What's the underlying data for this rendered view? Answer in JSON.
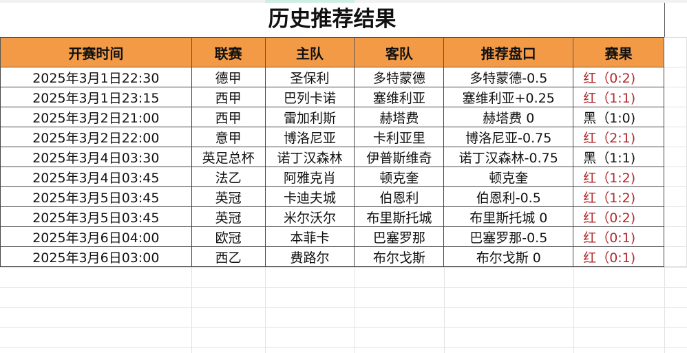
{
  "title": "历史推荐结果",
  "headers": [
    "开赛时间",
    "联赛",
    "主队",
    "客队",
    "推荐盘口",
    "赛果"
  ],
  "rows": [
    {
      "time": "2025年3月1日22:30",
      "league": "德甲",
      "home": "圣保利",
      "away": "多特蒙德",
      "pick": "多特蒙德-0.5",
      "result": "红（0:2)",
      "outcome": "red"
    },
    {
      "time": "2025年3月1日23:15",
      "league": "西甲",
      "home": "巴列卡诺",
      "away": "塞维利亚",
      "pick": "塞维利亚+0.25",
      "result": "红（1:1)",
      "outcome": "red"
    },
    {
      "time": "2025年3月2日21:00",
      "league": "西甲",
      "home": "雷加利斯",
      "away": "赫塔费",
      "pick": "赫塔费 0",
      "result": "黑（1:0)",
      "outcome": "black"
    },
    {
      "time": "2025年3月2日22:00",
      "league": "意甲",
      "home": "博洛尼亚",
      "away": "卡利亚里",
      "pick": "博洛尼亚-0.75",
      "result": "红（2:1)",
      "outcome": "red"
    },
    {
      "time": "2025年3月4日03:30",
      "league": "英足总杯",
      "home": "诺丁汉森林",
      "away": "伊普斯维奇",
      "pick": "诺丁汉森林-0.75",
      "result": "黑（1:1)",
      "outcome": "black"
    },
    {
      "time": "2025年3月4日03:45",
      "league": "法乙",
      "home": "阿雅克肖",
      "away": "顿克奎",
      "pick": "顿克奎",
      "result": "红（1:2)",
      "outcome": "red"
    },
    {
      "time": "2025年3月5日03:45",
      "league": "英冠",
      "home": "卡迪夫城",
      "away": "伯恩利",
      "pick": "伯恩利-0.5",
      "result": "红（1:2)",
      "outcome": "red"
    },
    {
      "time": "2025年3月5日03:45",
      "league": "英冠",
      "home": "米尔沃尔",
      "away": "布里斯托城",
      "pick": "布里斯托城 0",
      "result": "红（0:2)",
      "outcome": "red"
    },
    {
      "time": "2025年3月6日04:00",
      "league": "欧冠",
      "home": "本菲卡",
      "away": "巴塞罗那",
      "pick": "巴塞罗那-0.5",
      "result": "红（0:1)",
      "outcome": "red"
    },
    {
      "time": "2025年3月6日03:00",
      "league": "西乙",
      "home": "费路尔",
      "away": "布尔戈斯",
      "pick": "布尔戈斯 0",
      "result": "红（0:1)",
      "outcome": "red"
    }
  ],
  "colors": {
    "header_bg": "#f39a47",
    "red_result": "#b3282d"
  }
}
